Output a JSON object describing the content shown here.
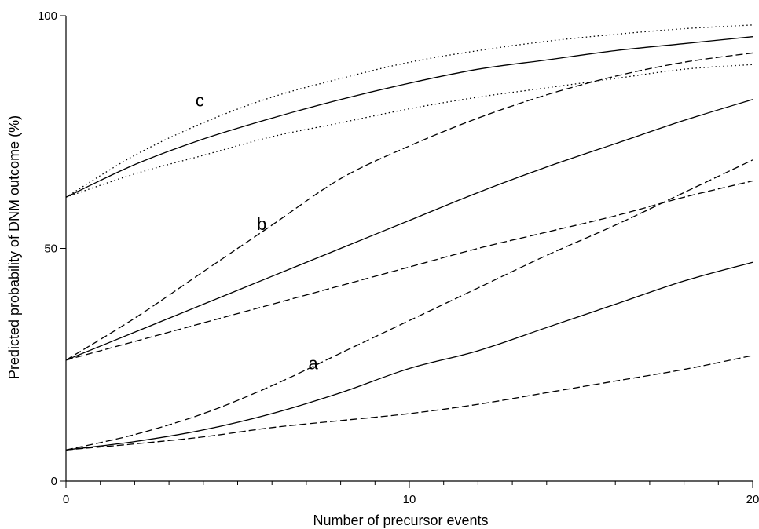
{
  "chart_data": {
    "type": "line",
    "title": "",
    "xlabel": "Number of precursor events",
    "ylabel": "Predicted probability of DNM outcome (%)",
    "xlim": [
      0,
      20
    ],
    "ylim": [
      0,
      100
    ],
    "x_ticks": [
      0,
      10,
      20
    ],
    "y_ticks": [
      0,
      50,
      100
    ],
    "x_minor_step": 1,
    "grid": false,
    "legend": "none",
    "x": [
      0,
      2,
      4,
      6,
      8,
      10,
      12,
      14,
      16,
      18,
      20
    ],
    "groups": [
      {
        "label": "a",
        "label_pos": {
          "x": 7.2,
          "y": 24
        },
        "series": [
          {
            "style": "solid",
            "values": [
              6.7,
              8.5,
              11,
              14.5,
              19,
              24.2,
              28,
              33,
              38,
              43,
              47
            ]
          },
          {
            "style": "dashed",
            "values": [
              6.7,
              10,
              14.5,
              20.5,
              27.5,
              34.5,
              41.5,
              48.5,
              55,
              62,
              69
            ]
          },
          {
            "style": "dashed",
            "values": [
              6.7,
              8,
              9.5,
              11.5,
              13,
              14.5,
              16.5,
              19,
              21.5,
              24,
              27
            ]
          }
        ]
      },
      {
        "label": "b",
        "label_pos": {
          "x": 5.7,
          "y": 54
        },
        "series": [
          {
            "style": "solid",
            "values": [
              26,
              32,
              38,
              44,
              50,
              56,
              62,
              67.5,
              72.5,
              77.5,
              82
            ]
          },
          {
            "style": "dashed",
            "values": [
              26,
              35,
              45,
              55,
              65,
              72,
              78,
              83,
              87,
              90,
              92
            ]
          },
          {
            "style": "dashed",
            "values": [
              26,
              30,
              34,
              38,
              42,
              46,
              50,
              53.5,
              57,
              61,
              64.5
            ]
          }
        ]
      },
      {
        "label": "c",
        "label_pos": {
          "x": 3.9,
          "y": 80.5
        },
        "series": [
          {
            "style": "solid",
            "values": [
              61,
              68,
              73.5,
              78,
              82,
              85.5,
              88.5,
              90.5,
              92.5,
              94,
              95.5
            ]
          },
          {
            "style": "dotted",
            "values": [
              61,
              70,
              77,
              82.5,
              86.5,
              90,
              92.5,
              94.5,
              96,
              97.2,
              98
            ]
          },
          {
            "style": "dotted",
            "values": [
              61,
              66,
              70,
              74,
              77,
              80,
              82.5,
              84.5,
              86.5,
              88.5,
              89.5
            ]
          }
        ]
      }
    ]
  }
}
